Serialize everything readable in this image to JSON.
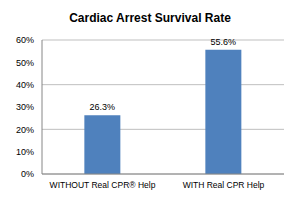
{
  "chart_data": {
    "type": "bar",
    "title": "Cardiac Arrest Survival Rate",
    "categories": [
      "WITHOUT Real CPR® Help",
      "WITH Real CPR Help"
    ],
    "values": [
      26.3,
      55.6
    ],
    "value_labels": [
      "26.3%",
      "55.6%"
    ],
    "data_labels": true,
    "color": "#4f81bd",
    "ylim": [
      0,
      60
    ],
    "yticks": [
      {
        "value": 0,
        "label": "0%"
      },
      {
        "value": 10,
        "label": "10%"
      },
      {
        "value": 20,
        "label": "20%"
      },
      {
        "value": 30,
        "label": "30%"
      },
      {
        "value": 40,
        "label": "40%"
      },
      {
        "value": 50,
        "label": "50%"
      },
      {
        "value": 60,
        "label": "60%"
      }
    ],
    "grid": true
  }
}
